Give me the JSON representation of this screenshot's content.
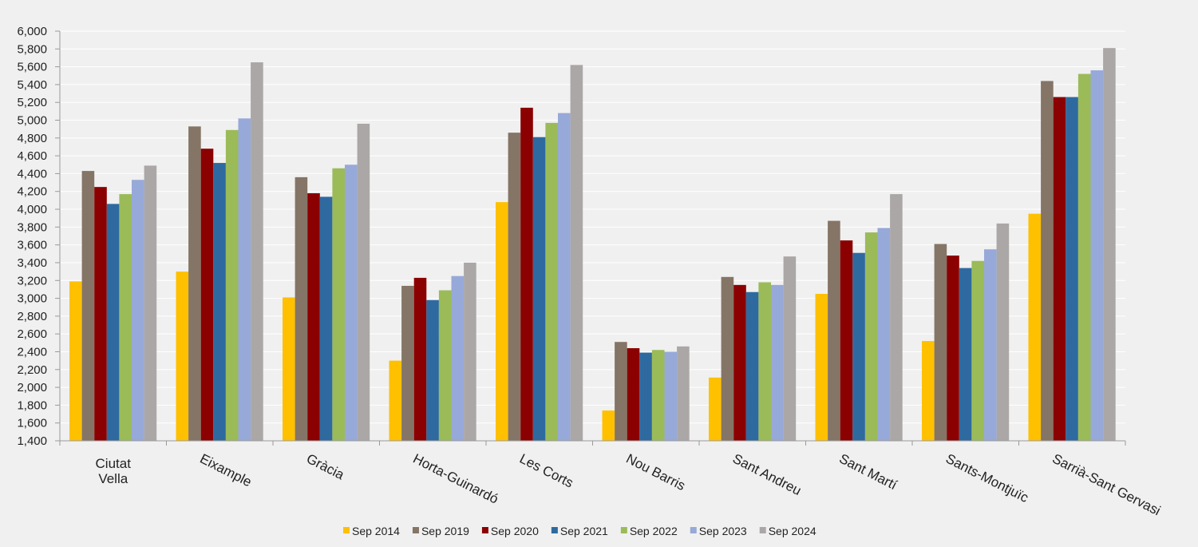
{
  "chart_data": {
    "type": "bar",
    "title": "",
    "xlabel": "",
    "ylabel": "",
    "ylim": [
      1400,
      6000
    ],
    "ytick_step": 200,
    "grid": true,
    "legend_position": "bottom",
    "categories": [
      "Ciutat Vella",
      "Eixample",
      "Gràcia",
      "Horta-Guinardó",
      "Les Corts",
      "Nou Barris",
      "Sant Andreu",
      "Sant Martí",
      "Sants-Montjuïc",
      "Sarrià-Sant Gervasi"
    ],
    "category_lines": [
      [
        "Ciutat",
        "Vella"
      ],
      [
        "Eixample"
      ],
      [
        "Gràcia"
      ],
      [
        "Horta-Guinardó"
      ],
      [
        "Les Corts"
      ],
      [
        "Nou Barris"
      ],
      [
        "Sant Andreu"
      ],
      [
        "Sant Martí"
      ],
      [
        "Sants-Montjuïc"
      ],
      [
        "Sarrià-Sant Gervasi"
      ]
    ],
    "series": [
      {
        "name": "Sep 2014",
        "color": "#ffc000",
        "values": [
          3190,
          3300,
          3010,
          2300,
          4080,
          1740,
          2110,
          3050,
          2520,
          3950
        ]
      },
      {
        "name": "Sep 2019",
        "color": "#857566",
        "values": [
          4430,
          4930,
          4360,
          3140,
          4860,
          2510,
          3240,
          3870,
          3610,
          5440
        ]
      },
      {
        "name": "Sep 2020",
        "color": "#8b0000",
        "values": [
          4250,
          4680,
          4180,
          3230,
          5140,
          2440,
          3150,
          3650,
          3480,
          5260
        ]
      },
      {
        "name": "Sep 2021",
        "color": "#2e6aa0",
        "values": [
          4060,
          4520,
          4140,
          2980,
          4810,
          2390,
          3070,
          3510,
          3340,
          5260
        ]
      },
      {
        "name": "Sep 2022",
        "color": "#9bbb59",
        "values": [
          4170,
          4890,
          4460,
          3090,
          4970,
          2420,
          3180,
          3740,
          3420,
          5520
        ]
      },
      {
        "name": "Sep 2023",
        "color": "#97a9d8",
        "values": [
          4330,
          5020,
          4500,
          3250,
          5080,
          2400,
          3150,
          3790,
          3550,
          5560
        ]
      },
      {
        "name": "Sep 2024",
        "color": "#aba7a7",
        "values": [
          4490,
          5650,
          4960,
          3400,
          5620,
          2460,
          3470,
          4170,
          3840,
          5810
        ]
      }
    ]
  }
}
